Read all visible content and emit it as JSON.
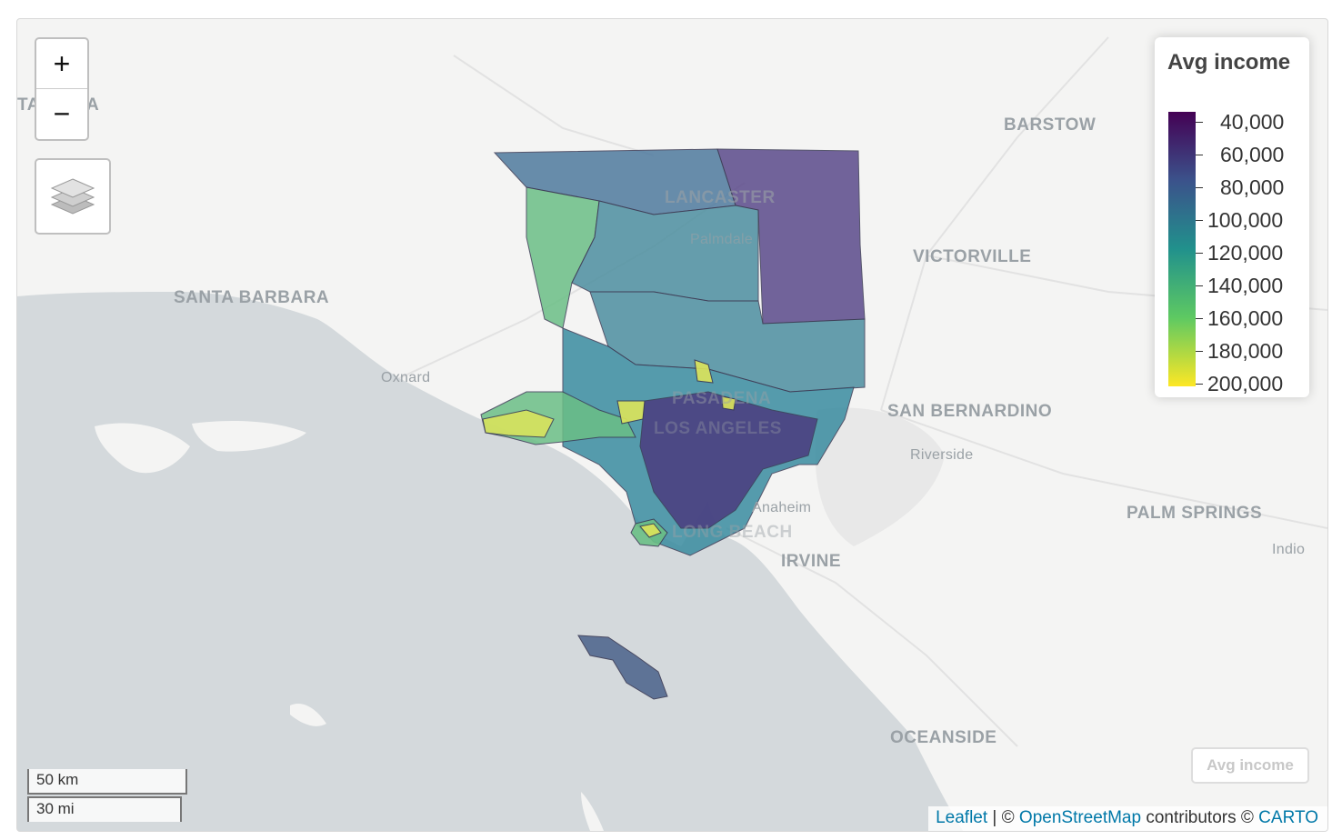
{
  "map": {
    "place_labels": [
      "SANTA BARBARA",
      "BARSTOW",
      "VICTORVILLE",
      "SAN BERNARDINO",
      "Riverside",
      "PALM SPRINGS",
      "Indio",
      "Anaheim",
      "IRVINE",
      "OCEANSIDE",
      "Oxnard",
      "LANCASTER",
      "Palmdale",
      "PASADENA",
      "LOS ANGELES",
      "LONG BEACH",
      "TA",
      "A"
    ],
    "polygon_colors": {
      "north_east": "#5b4a8b",
      "north_west": "#4f7a9e",
      "central": "#4d8fa0",
      "green": "#6bbf86",
      "yellow": "#dde55a",
      "teal": "#3a8ca0",
      "purple": "#4b3b7f",
      "catalina": "#52688f"
    }
  },
  "controls": {
    "zoom_in": "+",
    "zoom_out": "−",
    "layers_icon": "layers-icon"
  },
  "legend": {
    "title": "Avg income",
    "ticks": [
      "40,000",
      "60,000",
      "80,000",
      "100,000",
      "120,000",
      "140,000",
      "160,000",
      "180,000",
      "200,000"
    ],
    "colors": [
      "#440154",
      "#3b528b",
      "#21918c",
      "#5ec962",
      "#fde725"
    ]
  },
  "legend_toggle": "Avg income",
  "scale": {
    "km": "50 km",
    "mi": "30 mi"
  },
  "attribution": {
    "leaflet": "Leaflet",
    "sep1": " | © ",
    "osm": "OpenStreetMap",
    "contrib": " contributors © ",
    "carto": "CARTO"
  }
}
